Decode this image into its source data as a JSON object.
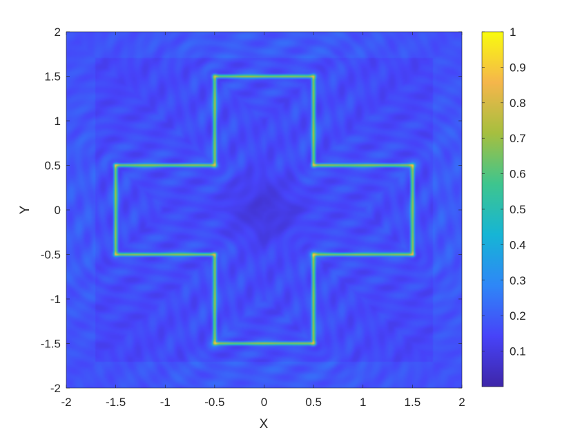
{
  "chart_data": {
    "type": "heatmap",
    "title": "",
    "xlabel": "X",
    "ylabel": "Y",
    "xlim": [
      -2,
      2
    ],
    "ylim": [
      -2,
      2
    ],
    "xticks": [
      "-2",
      "-1.5",
      "-1",
      "-0.5",
      "0",
      "0.5",
      "1",
      "1.5",
      "2"
    ],
    "yticks": [
      "2",
      "1.5",
      "1",
      "0.5",
      "0",
      "-0.5",
      "-1",
      "-1.5",
      "-2"
    ],
    "x_tick_values": [
      -2,
      -1.5,
      -1,
      -0.5,
      0,
      0.5,
      1,
      1.5,
      2
    ],
    "y_tick_values": [
      2,
      1.5,
      1,
      0.5,
      0,
      -0.5,
      -1,
      -1.5,
      -2
    ],
    "colormap": "parula",
    "colorbar": {
      "range": [
        0,
        1
      ],
      "tick_values": [
        1,
        0.9,
        0.8,
        0.7,
        0.6,
        0.5,
        0.4,
        0.3,
        0.2,
        0.1
      ],
      "tick_labels": [
        "1",
        "0.9",
        "0.8",
        "0.7",
        "0.6",
        "0.5",
        "0.4",
        "0.3",
        "0.2",
        "0.1"
      ],
      "colors": [
        "#3e26a8",
        "#4743f9",
        "#2e87f7",
        "#16b5d5",
        "#3ec58e",
        "#a6bf3f",
        "#f5b64b",
        "#f9fb0e"
      ]
    },
    "shape": {
      "description_values": "cross-shaped outline with high intensity (~0.6-0.8) on boundary, background ~0.05-0.25",
      "outline_vertices": [
        [
          -0.5,
          1.5
        ],
        [
          0.5,
          1.5
        ],
        [
          0.5,
          0.5
        ],
        [
          1.5,
          0.5
        ],
        [
          1.5,
          -0.5
        ],
        [
          0.5,
          -0.5
        ],
        [
          0.5,
          -1.5
        ],
        [
          -0.5,
          -1.5
        ],
        [
          -0.5,
          -0.5
        ],
        [
          -1.5,
          -0.5
        ],
        [
          -1.5,
          0.5
        ],
        [
          -0.5,
          0.5
        ]
      ],
      "edge_value": 0.65,
      "corner_value": 0.85,
      "background_value": 0.12
    }
  }
}
